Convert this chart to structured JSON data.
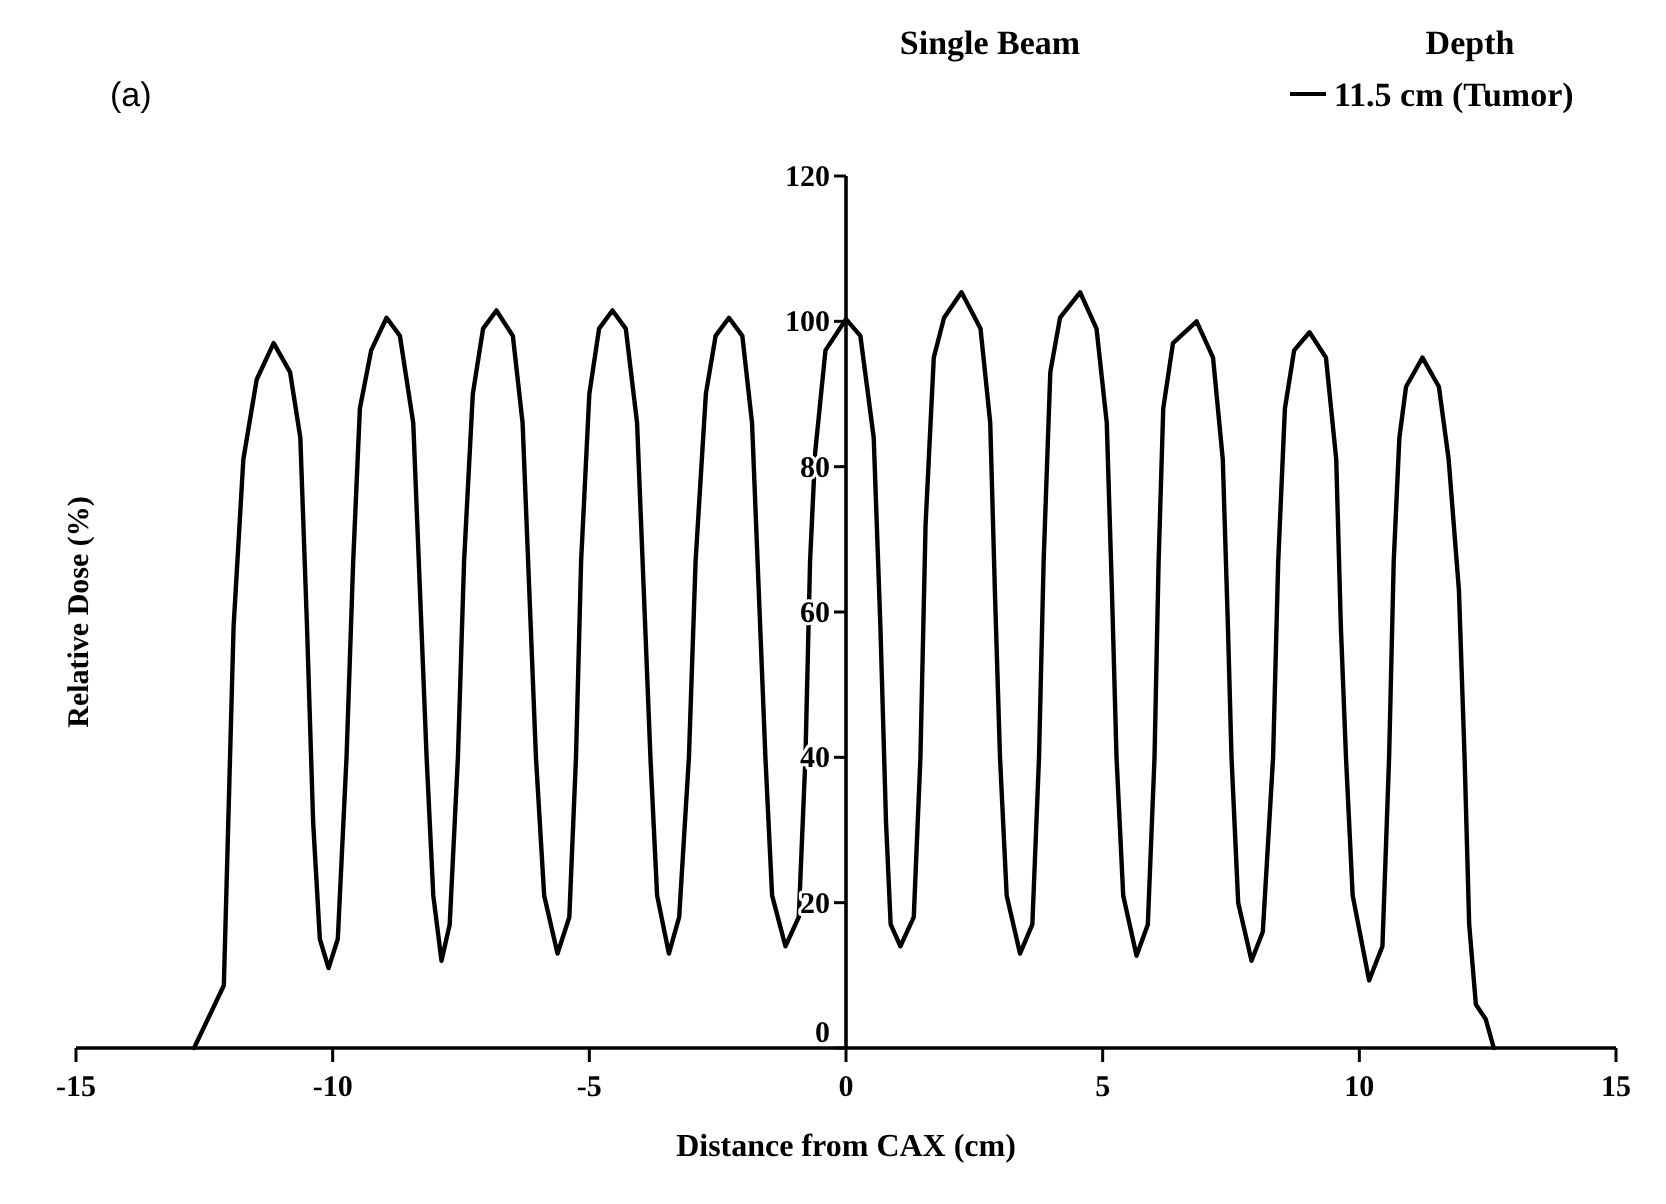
{
  "chart_data": {
    "type": "line",
    "title": "Single Beam",
    "xlabel": "Distance from CAX (cm)",
    "ylabel": "Relative Dose (%)",
    "legend_title": "Depth",
    "annotations": [
      "(a)"
    ],
    "legend": "top right",
    "grid": false,
    "marker": "none",
    "line_style": "solid",
    "xlim": [
      -15,
      15
    ],
    "xticks": [
      -15,
      -10,
      -5,
      0,
      5,
      10,
      15
    ],
    "ylim": [
      0,
      120
    ],
    "yticks": [
      0,
      20,
      40,
      60,
      80,
      100,
      120
    ],
    "series": [
      {
        "name": "11.5 cm (Tumor)",
        "color": "#000000",
        "x": [
          -12.7,
          -12.12,
          -11.93,
          -11.74,
          -11.48,
          -11.15,
          -10.83,
          -10.63,
          -10.5,
          -10.38,
          -10.25,
          -10.08,
          -9.9,
          -9.73,
          -9.6,
          -9.47,
          -9.25,
          -8.95,
          -8.69,
          -8.43,
          -8.3,
          -8.17,
          -8.04,
          -7.88,
          -7.72,
          -7.56,
          -7.44,
          -7.27,
          -7.07,
          -6.81,
          -6.49,
          -6.3,
          -6.17,
          -6.04,
          -5.88,
          -5.62,
          -5.39,
          -5.26,
          -5.16,
          -5.0,
          -4.81,
          -4.55,
          -4.29,
          -4.07,
          -3.94,
          -3.81,
          -3.68,
          -3.45,
          -3.25,
          -3.06,
          -2.93,
          -2.73,
          -2.54,
          -2.28,
          -2.02,
          -1.83,
          -1.7,
          -1.57,
          -1.44,
          -1.18,
          -0.92,
          -0.79,
          -0.7,
          -0.6,
          -0.4,
          0,
          0.28,
          0.54,
          0.67,
          0.78,
          0.87,
          1.06,
          1.32,
          1.45,
          1.55,
          1.71,
          1.91,
          2.25,
          2.62,
          2.81,
          2.9,
          3.0,
          3.13,
          3.39,
          3.63,
          3.76,
          3.85,
          3.98,
          4.17,
          4.56,
          4.88,
          5.08,
          5.18,
          5.27,
          5.4,
          5.66,
          5.88,
          6.01,
          6.09,
          6.18,
          6.37,
          6.83,
          7.15,
          7.34,
          7.44,
          7.51,
          7.64,
          7.9,
          8.12,
          8.32,
          8.42,
          8.55,
          8.73,
          9.03,
          9.35,
          9.55,
          9.64,
          9.74,
          9.87,
          10.19,
          10.45,
          10.58,
          10.67,
          10.78,
          10.91,
          11.23,
          11.55,
          11.74,
          11.94,
          12.05,
          12.14,
          12.27,
          12.46,
          12.62
        ],
        "values": [
          0,
          8.6,
          58,
          81,
          92,
          97,
          93,
          84,
          58,
          31,
          15,
          11,
          15,
          40,
          67,
          88,
          96,
          100.5,
          98,
          86,
          63,
          40,
          21,
          12,
          17,
          40,
          67,
          90,
          99,
          101.5,
          98,
          86,
          63,
          40,
          21,
          13,
          18,
          40,
          67,
          90,
          99,
          101.5,
          99,
          86,
          63,
          40,
          21,
          13,
          18,
          40,
          67,
          90,
          98,
          100.5,
          98,
          86,
          63,
          40,
          21,
          14,
          18,
          40,
          67,
          82,
          96,
          100.3,
          98,
          84,
          58,
          31,
          17,
          14,
          18,
          40,
          72,
          95,
          100.5,
          104,
          99,
          86,
          63,
          40,
          21,
          13,
          17,
          40,
          67,
          93,
          100.5,
          104,
          99,
          86,
          63,
          40,
          21,
          12.7,
          17,
          40,
          67,
          88,
          97,
          100,
          95,
          81,
          58,
          40,
          20,
          12,
          16,
          40,
          67,
          88,
          96,
          98.5,
          95,
          81,
          58,
          40,
          21,
          9.3,
          14,
          40,
          67,
          84,
          91,
          95,
          91,
          81,
          63,
          40,
          17,
          6,
          4,
          0
        ]
      }
    ]
  }
}
